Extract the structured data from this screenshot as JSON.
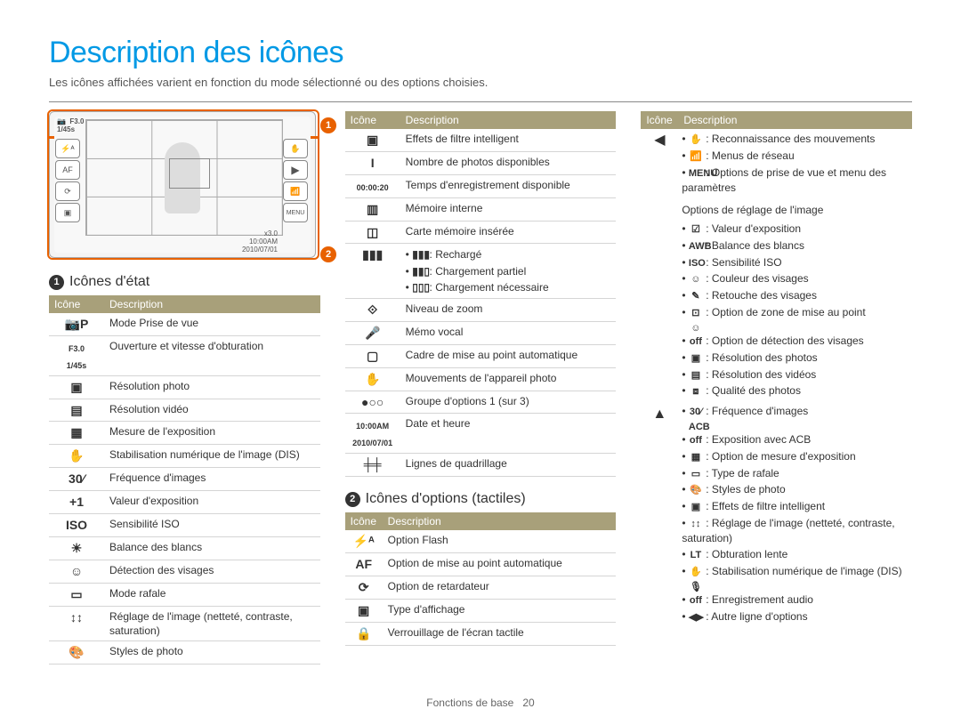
{
  "page": {
    "title": "Description des icônes",
    "subtitle": "Les icônes affichées varient en fonction du mode sélectionné ou des options choisies.",
    "footer_label": "Fonctions de base",
    "footer_page": "20"
  },
  "headers": {
    "icon": "Icône",
    "desc": "Description"
  },
  "section1": {
    "num": "1",
    "title": "Icônes d'état"
  },
  "section2": {
    "num": "2",
    "title": "Icônes d'options (tactiles)"
  },
  "screen": {
    "aperture": "F3.0",
    "shutter": "1/45s",
    "zoom": "x3.0",
    "time": "10:00AM",
    "date": "2010/07/01"
  },
  "table1": [
    {
      "icon": "📷P",
      "desc": "Mode Prise de vue"
    },
    {
      "icon": "F3.0\n1/45s",
      "desc": "Ouverture et vitesse d'obturation",
      "tiny": true
    },
    {
      "icon": "▣",
      "desc": "Résolution photo"
    },
    {
      "icon": "▤",
      "desc": "Résolution vidéo"
    },
    {
      "icon": "▦",
      "desc": "Mesure de l'exposition"
    },
    {
      "icon": "✋",
      "desc": "Stabilisation numérique de l'image (DIS)"
    },
    {
      "icon": "30⁄",
      "desc": "Fréquence d'images"
    },
    {
      "icon": "+1",
      "desc": "Valeur d'exposition"
    },
    {
      "icon": "ISO",
      "desc": "Sensibilité ISO"
    },
    {
      "icon": "☀",
      "desc": "Balance des blancs"
    },
    {
      "icon": "☺",
      "desc": "Détection des visages"
    },
    {
      "icon": "▭",
      "desc": "Mode rafale"
    },
    {
      "icon": "↕↕",
      "desc": "Réglage de l'image (netteté, contraste, saturation)"
    },
    {
      "icon": "🎨",
      "desc": "Styles de photo"
    }
  ],
  "table2": [
    {
      "icon": "▣",
      "desc": "Effets de filtre intelligent"
    },
    {
      "icon": "I",
      "desc": "Nombre de photos disponibles"
    },
    {
      "icon": "00:00:20",
      "desc": "Temps d'enregistrement disponible",
      "tiny": true
    },
    {
      "icon": "▥",
      "desc": "Mémoire interne"
    },
    {
      "icon": "◫",
      "desc": "Carte mémoire insérée"
    },
    {
      "icon": "",
      "desc_list": [
        {
          "pre": "▮▮▮",
          "text": " : Rechargé"
        },
        {
          "pre": "▮▮▯",
          "text": " : Chargement partiel"
        },
        {
          "pre": "▯▯▯",
          "text": " : Chargement nécessaire"
        }
      ],
      "icon_center": "▮▮▮"
    },
    {
      "icon": "⟐",
      "desc": "Niveau de zoom"
    },
    {
      "icon": "🎤",
      "desc": "Mémo vocal"
    },
    {
      "icon": "▢",
      "desc": "Cadre de mise au point automatique"
    },
    {
      "icon": "✋",
      "desc": "Mouvements de l'appareil photo"
    },
    {
      "icon": "●○○",
      "desc": "Groupe d'options 1 (sur 3)"
    },
    {
      "icon": "10:00AM\n2010/07/01",
      "desc": "Date et heure",
      "tiny": true
    },
    {
      "icon": "╪╪",
      "desc": "Lignes de quadrillage"
    }
  ],
  "table3": [
    {
      "icon": "⚡ᴬ",
      "desc": "Option Flash"
    },
    {
      "icon": "AF",
      "desc": "Option de mise au point automatique"
    },
    {
      "icon": "⟳",
      "desc": "Option de retardateur"
    },
    {
      "icon": "▣",
      "desc": "Type d'affichage"
    },
    {
      "icon": "🔒",
      "desc": "Verrouillage de l'écran tactile"
    }
  ],
  "col3_left": {
    "arrow": "◀",
    "items": [
      {
        "pre": "✋",
        "text": " : Reconnaissance des mouvements"
      },
      {
        "pre": "📶",
        "text": " : Menus de réseau"
      },
      {
        "pre": "MENU",
        "text": " : Options de prise de vue et menu des paramètres"
      }
    ]
  },
  "col3_mid": {
    "subhead": "Options de réglage de l'image",
    "items": [
      {
        "pre": "☑",
        "text": " : Valeur d'exposition"
      },
      {
        "pre": "AWB",
        "text": " : Balance des blancs"
      },
      {
        "pre": "ISO",
        "text": " : Sensibilité ISO"
      },
      {
        "pre": "☺",
        "text": " : Couleur des visages"
      },
      {
        "pre": "✎",
        "text": " : Retouche des visages"
      },
      {
        "pre": "⊡",
        "text": " : Option de zone de mise au point"
      },
      {
        "pre": "☺off",
        "text": " : Option de détection des visages"
      },
      {
        "pre": "▣",
        "text": " : Résolution des photos"
      },
      {
        "pre": "▤",
        "text": " : Résolution des vidéos"
      },
      {
        "pre": "⧈",
        "text": " : Qualité des photos"
      }
    ]
  },
  "col3_right": {
    "arrow": "▲",
    "items": [
      {
        "pre": "30⁄",
        "text": " : Fréquence d'images"
      },
      {
        "pre": "ACB off",
        "text": " : Exposition avec ACB"
      },
      {
        "pre": "▦",
        "text": " : Option de mesure d'exposition"
      },
      {
        "pre": "▭",
        "text": " : Type de rafale"
      },
      {
        "pre": "🎨",
        "text": " : Styles de photo"
      },
      {
        "pre": "▣",
        "text": " : Effets de filtre intelligent"
      },
      {
        "pre": "↕↕",
        "text": " : Réglage de l'image (netteté, contraste, saturation)"
      },
      {
        "pre": "LT",
        "text": " : Obturation lente"
      },
      {
        "pre": "✋",
        "text": " : Stabilisation numérique de l'image (DIS)"
      },
      {
        "pre": "🎙off",
        "text": " : Enregistrement audio"
      },
      {
        "pre": "◀▶",
        "text": " : Autre ligne d'options"
      }
    ]
  }
}
